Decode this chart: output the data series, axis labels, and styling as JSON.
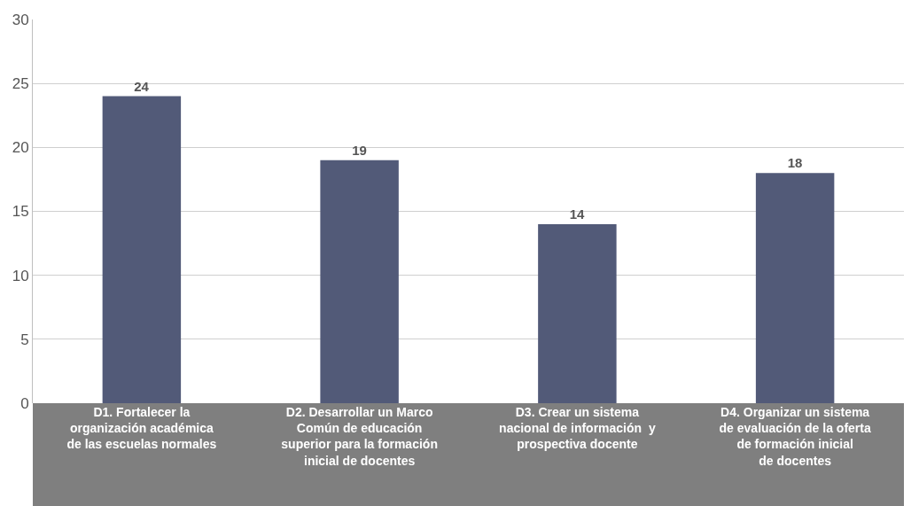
{
  "chart_data": {
    "type": "bar",
    "categories": [
      "D1. Fortalecer la\norganización académica\nde las escuelas normales",
      "D2. Desarrollar un Marco\nComún de educación\nsuperior para la formación\ninicial de docentes",
      "D3. Crear un sistema\nnacional de información  y\nprospectiva docente",
      "D4. Organizar un sistema\nde evaluación de la oferta\nde formación inicial\nde docentes"
    ],
    "values": [
      24,
      19,
      14,
      18
    ],
    "color": "#525a78",
    "ylim": [
      0,
      30
    ],
    "yticks": [
      0,
      5,
      10,
      15,
      20,
      25,
      30
    ],
    "grid": "y",
    "data_labels": true
  }
}
